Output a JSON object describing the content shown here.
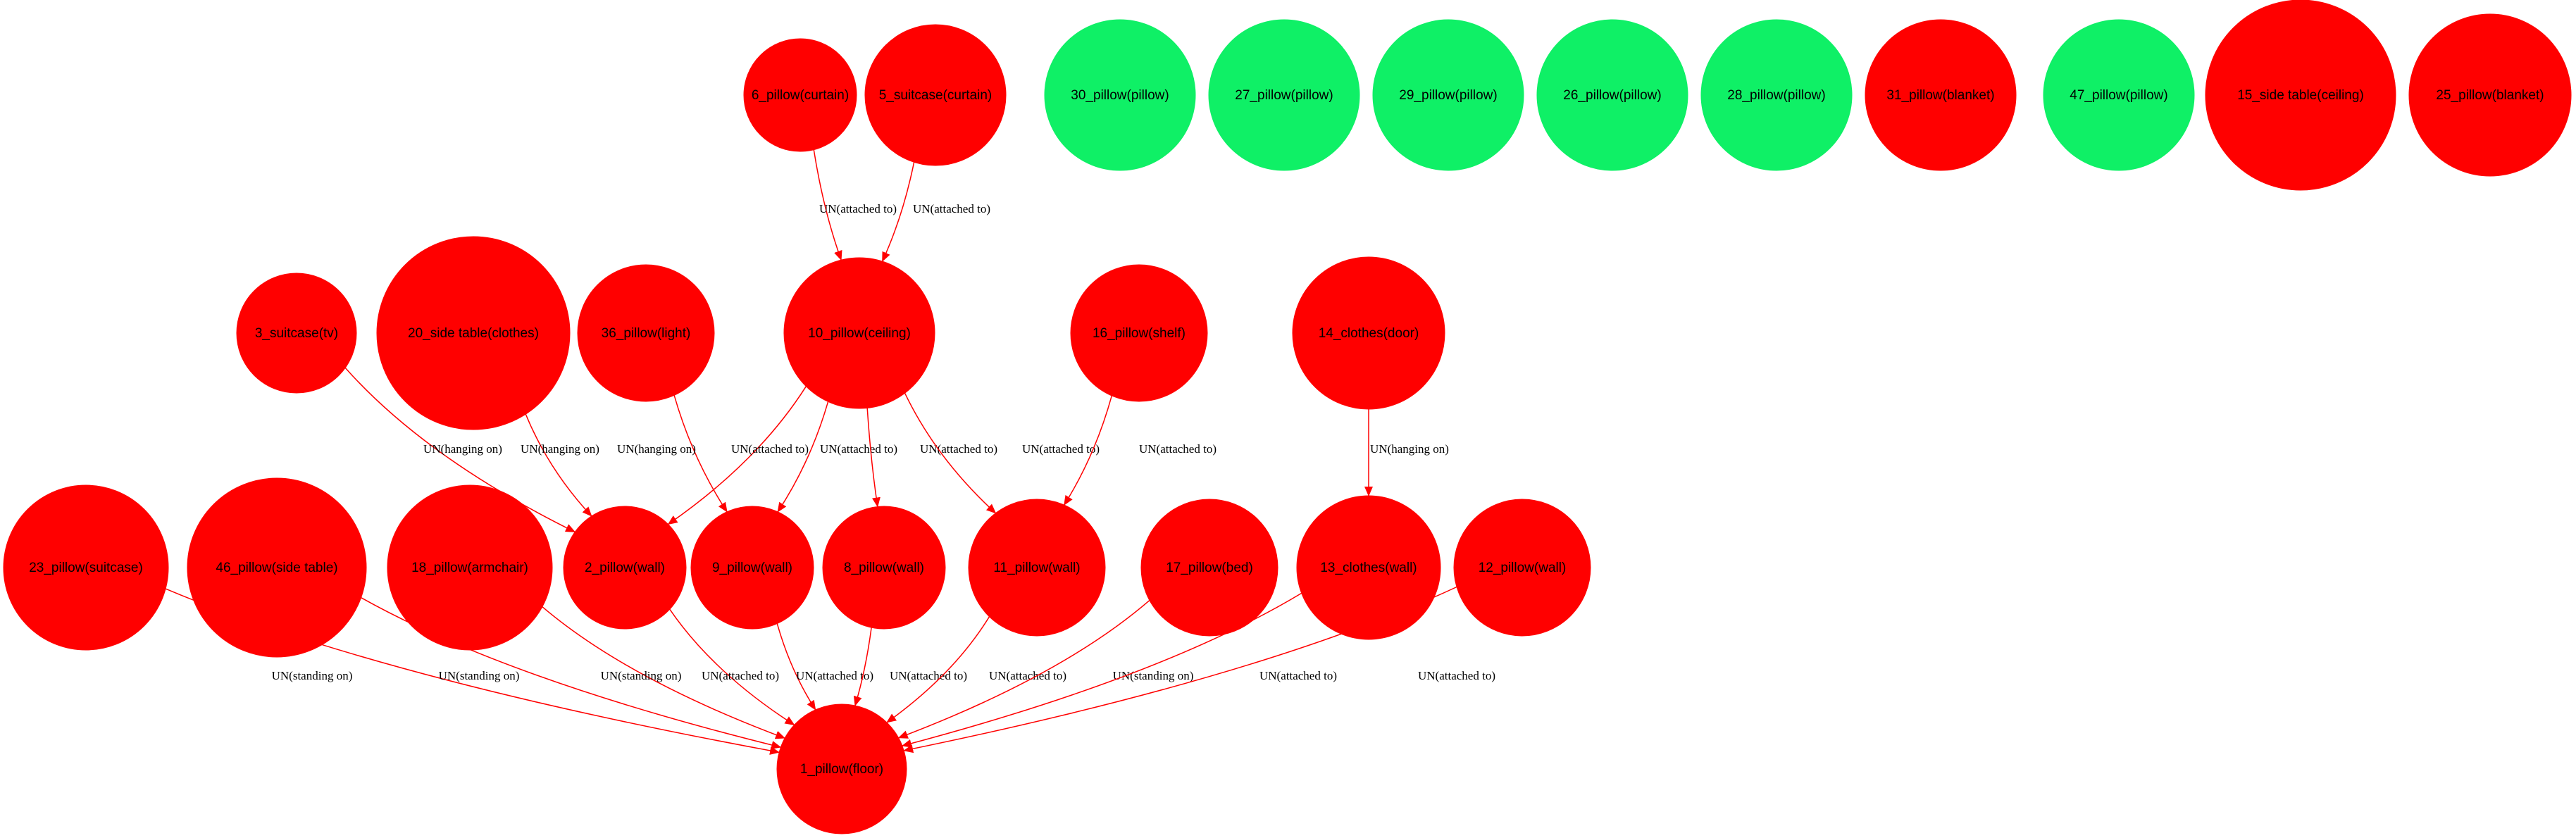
{
  "colors": {
    "conflict": "#ff0000",
    "ok": "#0ff066",
    "edge": "#ff0000",
    "text": "#000000",
    "background": "#ffffff"
  },
  "nodes": [
    {
      "id": "n6",
      "label": "6_pillow(curtain)",
      "status": "conflict"
    },
    {
      "id": "n5",
      "label": "5_suitcase(curtain)",
      "status": "conflict"
    },
    {
      "id": "n30",
      "label": "30_pillow(pillow)",
      "status": "ok"
    },
    {
      "id": "n27",
      "label": "27_pillow(pillow)",
      "status": "ok"
    },
    {
      "id": "n29",
      "label": "29_pillow(pillow)",
      "status": "ok"
    },
    {
      "id": "n26",
      "label": "26_pillow(pillow)",
      "status": "ok"
    },
    {
      "id": "n28",
      "label": "28_pillow(pillow)",
      "status": "ok"
    },
    {
      "id": "n31",
      "label": "31_pillow(blanket)",
      "status": "conflict"
    },
    {
      "id": "n47",
      "label": "47_pillow(pillow)",
      "status": "ok"
    },
    {
      "id": "n15",
      "label": "15_side table(ceiling)",
      "status": "conflict"
    },
    {
      "id": "n25",
      "label": "25_pillow(blanket)",
      "status": "conflict"
    },
    {
      "id": "n3",
      "label": "3_suitcase(tv)",
      "status": "conflict"
    },
    {
      "id": "n20",
      "label": "20_side table(clothes)",
      "status": "conflict"
    },
    {
      "id": "n36",
      "label": "36_pillow(light)",
      "status": "conflict"
    },
    {
      "id": "n10",
      "label": "10_pillow(ceiling)",
      "status": "conflict"
    },
    {
      "id": "n16",
      "label": "16_pillow(shelf)",
      "status": "conflict"
    },
    {
      "id": "n14",
      "label": "14_clothes(door)",
      "status": "conflict"
    },
    {
      "id": "n23",
      "label": "23_pillow(suitcase)",
      "status": "conflict"
    },
    {
      "id": "n46",
      "label": "46_pillow(side table)",
      "status": "conflict"
    },
    {
      "id": "n18",
      "label": "18_pillow(armchair)",
      "status": "conflict"
    },
    {
      "id": "n2",
      "label": "2_pillow(wall)",
      "status": "conflict"
    },
    {
      "id": "n9",
      "label": "9_pillow(wall)",
      "status": "conflict"
    },
    {
      "id": "n8",
      "label": "8_pillow(wall)",
      "status": "conflict"
    },
    {
      "id": "n11",
      "label": "11_pillow(wall)",
      "status": "conflict"
    },
    {
      "id": "n17",
      "label": "17_pillow(bed)",
      "status": "conflict"
    },
    {
      "id": "n13",
      "label": "13_clothes(wall)",
      "status": "conflict"
    },
    {
      "id": "n12",
      "label": "12_pillow(wall)",
      "status": "conflict"
    },
    {
      "id": "n1",
      "label": "1_pillow(floor)",
      "status": "conflict"
    }
  ],
  "edges": [
    {
      "from": "n6",
      "to": "n10",
      "label": "UN(attached to)"
    },
    {
      "from": "n5",
      "to": "n10",
      "label": "UN(attached to)"
    },
    {
      "from": "n3",
      "to": "n2",
      "label": "UN(hanging on)"
    },
    {
      "from": "n20",
      "to": "n2",
      "label": "UN(hanging on)"
    },
    {
      "from": "n36",
      "to": "n9",
      "label": "UN(hanging on)"
    },
    {
      "from": "n10",
      "to": "n2",
      "label": "UN(attached to)"
    },
    {
      "from": "n10",
      "to": "n9",
      "label": "UN(attached to)"
    },
    {
      "from": "n10",
      "to": "n8",
      "label": "UN(attached to)"
    },
    {
      "from": "n10",
      "to": "n11",
      "label": "UN(attached to)"
    },
    {
      "from": "n16",
      "to": "n11",
      "label": "UN(attached to)"
    },
    {
      "from": "n14",
      "to": "n13",
      "label": "UN(hanging on)"
    },
    {
      "from": "n23",
      "to": "n1",
      "label": "UN(standing on)"
    },
    {
      "from": "n46",
      "to": "n1",
      "label": "UN(standing on)"
    },
    {
      "from": "n18",
      "to": "n1",
      "label": "UN(standing on)"
    },
    {
      "from": "n2",
      "to": "n1",
      "label": "UN(attached to)"
    },
    {
      "from": "n9",
      "to": "n1",
      "label": "UN(attached to)"
    },
    {
      "from": "n8",
      "to": "n1",
      "label": "UN(attached to)"
    },
    {
      "from": "n11",
      "to": "n1",
      "label": "UN(attached to)"
    },
    {
      "from": "n17",
      "to": "n1",
      "label": "UN(standing on)"
    },
    {
      "from": "n13",
      "to": "n1",
      "label": "UN(attached to)"
    },
    {
      "from": "n12",
      "to": "n1",
      "label": "UN(attached to)"
    }
  ]
}
